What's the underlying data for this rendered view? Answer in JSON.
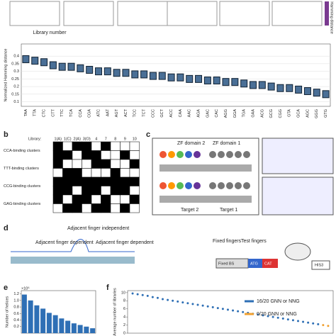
{
  "panel_labels": [
    "b",
    "c",
    "d",
    "e",
    "f"
  ],
  "panel_a_top": {
    "x_label": "Library number",
    "side_label": "Hamming distance"
  },
  "panel_b": {
    "library_label": "Library:",
    "libraries": [
      "1(A)",
      "1(C)",
      "2(A)",
      "3(O)",
      "4",
      "7",
      "8",
      "9",
      "10"
    ],
    "clusters": [
      "CCA-binding clusters",
      "TTT-binding clusters",
      "CCG-binding clusters",
      "GAG-binding clusters"
    ],
    "cells": [
      [
        1,
        0,
        1,
        1,
        0,
        1,
        0,
        0,
        0
      ],
      [
        1,
        1,
        0,
        1,
        1,
        0,
        0,
        1,
        0
      ],
      [
        1,
        0,
        0,
        0,
        1,
        1,
        0,
        0,
        1
      ],
      [
        0,
        1,
        1,
        0,
        0,
        0,
        1,
        0,
        0
      ],
      [
        1,
        1,
        1,
        1,
        1,
        1,
        1,
        1,
        1
      ],
      [
        1,
        1,
        0,
        1,
        1,
        0,
        1,
        1,
        0
      ],
      [
        1,
        0,
        1,
        1,
        0,
        1,
        0,
        0,
        1
      ],
      [
        0,
        1,
        1,
        0,
        1,
        1,
        0,
        1,
        0
      ]
    ]
  },
  "panel_c": {
    "domain2": "ZF domain 2",
    "domain1": "ZF domain 1",
    "target2": "Target 2",
    "target1": "Target 1"
  },
  "panel_d": {
    "dep_left": "Adjacent finger dependent",
    "indep": "Adjacent finger independent",
    "dep_right": "Adjacent finger dependent",
    "fixed": "Fixed fingers",
    "test": "Test fingers",
    "fixed_bs": "Fixed BS",
    "atg": "ATG",
    "cat": "CAT",
    "his": "HIS3"
  },
  "chart_data": [
    {
      "type": "box",
      "y_label": "Normalized Hamming distance",
      "color": "#4a6f96",
      "categories": [
        "TAA",
        "TTA",
        "CTC",
        "CTT",
        "TTC",
        "TCA",
        "CCA",
        "CGA",
        "ATC",
        "AAT",
        "AGT",
        "ACT",
        "TCC",
        "TCT",
        "CCC",
        "GCT",
        "ACC",
        "CAA",
        "AAC",
        "AGA",
        "GAC",
        "CAC",
        "AGG",
        "GGA",
        "TGA",
        "GAA",
        "ACG",
        "GCG",
        "CGG",
        "GTA",
        "GCA",
        "AGC",
        "GGG",
        "GTG"
      ],
      "values": [
        0.38,
        0.37,
        0.36,
        0.34,
        0.33,
        0.33,
        0.32,
        0.31,
        0.3,
        0.3,
        0.29,
        0.29,
        0.28,
        0.28,
        0.27,
        0.27,
        0.26,
        0.26,
        0.25,
        0.25,
        0.24,
        0.24,
        0.23,
        0.23,
        0.22,
        0.21,
        0.21,
        0.2,
        0.19,
        0.19,
        0.18,
        0.17,
        0.16,
        0.15
      ],
      "ylim": [
        0.07,
        0.48
      ],
      "yticks": [
        0.1,
        0.15,
        0.2,
        0.25,
        0.3,
        0.35,
        0.4
      ],
      "grid": true
    },
    {
      "type": "bar",
      "y_label": "Number of helices",
      "y_scale_label": "×10⁶",
      "color": "#2e6fb5",
      "values": [
        1.18,
        1.0,
        0.85,
        0.75,
        0.62,
        0.55,
        0.45,
        0.38,
        0.3,
        0.25,
        0.2,
        0.15
      ],
      "ylim": [
        0,
        1.3
      ],
      "yticks": [
        0.2,
        0.4,
        0.6,
        0.8,
        {
          "value": 1,
          "label": "1.0"
        },
        1.2
      ]
    },
    {
      "type": "scatter",
      "y_label": "Average number of libraries",
      "x": [
        1,
        2,
        3,
        4,
        5,
        6,
        7,
        8,
        9,
        10,
        11,
        12,
        13,
        14,
        15,
        16,
        17,
        18,
        19,
        20,
        21,
        22,
        23,
        24,
        25,
        26,
        27,
        28,
        29,
        30,
        31,
        32,
        33,
        34,
        35,
        36,
        37,
        38,
        39,
        40
      ],
      "series": [
        {
          "name": "16/20 GNN or NNG",
          "color": "#2e6fb5",
          "values": [
            9.8,
            9.6,
            9.4,
            9.2,
            8.9,
            8.7,
            8.4,
            8.2,
            8.0,
            7.8,
            7.6,
            7.4,
            7.2,
            7.0,
            6.8,
            6.6,
            6.4,
            6.2,
            6.0,
            5.8,
            5.6,
            5.4,
            5.2,
            5.0,
            4.8,
            4.6,
            4.4,
            4.2,
            4.0,
            3.8,
            3.6,
            3.4,
            3.2,
            3.0,
            2.8,
            2.6,
            2.4,
            2.2,
            null,
            null
          ]
        },
        {
          "name": "0/20 GNN or NNG",
          "color": "#f0a030",
          "values": [
            null,
            null,
            null,
            null,
            null,
            null,
            null,
            null,
            null,
            null,
            null,
            null,
            null,
            null,
            null,
            null,
            null,
            null,
            null,
            null,
            null,
            null,
            null,
            null,
            null,
            null,
            null,
            null,
            null,
            null,
            null,
            null,
            null,
            null,
            null,
            null,
            null,
            null,
            2.0,
            1.8
          ]
        }
      ],
      "xlim": [
        0,
        41
      ],
      "ylim": [
        0,
        10.5
      ],
      "yticks": [
        0,
        2,
        4,
        6,
        8,
        10
      ]
    }
  ]
}
